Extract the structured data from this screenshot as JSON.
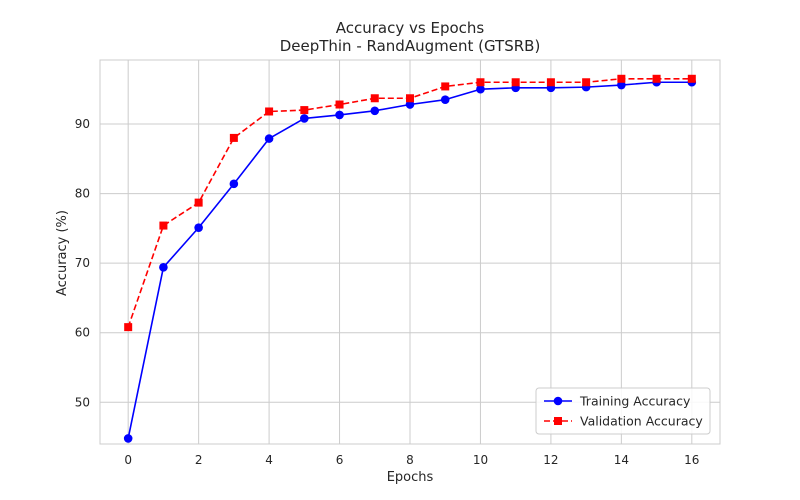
{
  "chart_data": {
    "type": "line",
    "title": "Accuracy vs Epochs",
    "subtitle": "DeepThin - RandAugment (GTSRB)",
    "xlabel": "Epochs",
    "ylabel": "Accuracy (%)",
    "xlim": [
      -0.8,
      16.8
    ],
    "ylim": [
      44,
      99.2
    ],
    "xticks": [
      0,
      2,
      4,
      6,
      8,
      10,
      12,
      14,
      16
    ],
    "yticks": [
      50,
      60,
      70,
      80,
      90
    ],
    "grid": true,
    "legend_position": "lower-right",
    "x": [
      0,
      1,
      2,
      3,
      4,
      5,
      6,
      7,
      8,
      9,
      10,
      11,
      12,
      13,
      14,
      15,
      16
    ],
    "series": [
      {
        "name": "Training Accuracy",
        "color": "#0000ff",
        "line_style": "solid",
        "marker": "circle",
        "values": [
          44.8,
          69.4,
          75.1,
          81.4,
          87.9,
          90.8,
          91.3,
          91.9,
          92.8,
          93.5,
          95.0,
          95.2,
          95.2,
          95.3,
          95.6,
          96.0,
          96.0
        ]
      },
      {
        "name": "Validation Accuracy",
        "color": "#ff0000",
        "line_style": "dashed",
        "marker": "square",
        "values": [
          60.8,
          75.4,
          78.7,
          88.0,
          91.8,
          92.0,
          92.8,
          93.7,
          93.7,
          95.4,
          96.0,
          96.0,
          96.0,
          96.0,
          96.5,
          96.5,
          96.5
        ]
      }
    ]
  }
}
